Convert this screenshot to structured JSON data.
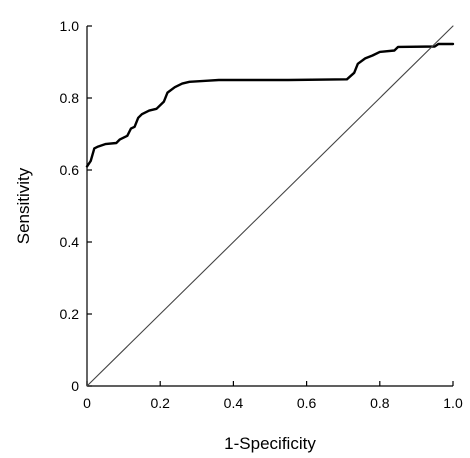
{
  "chart_data": {
    "type": "line",
    "title": "",
    "xlabel": "1-Specificity",
    "ylabel": "Sensitivity",
    "xlim": [
      0,
      1
    ],
    "ylim": [
      0,
      1
    ],
    "x_ticks": [
      {
        "value": 0,
        "label": "0"
      },
      {
        "value": 0.2,
        "label": "0.2"
      },
      {
        "value": 0.4,
        "label": "0.4"
      },
      {
        "value": 0.6,
        "label": "0.6"
      },
      {
        "value": 0.8,
        "label": "0.8"
      },
      {
        "value": 1,
        "label": "1.0"
      }
    ],
    "y_ticks": [
      {
        "value": 0,
        "label": "0"
      },
      {
        "value": 0.2,
        "label": "0.2"
      },
      {
        "value": 0.4,
        "label": "0.4"
      },
      {
        "value": 0.6,
        "label": "0.6"
      },
      {
        "value": 0.8,
        "label": "0.8"
      },
      {
        "value": 1,
        "label": "1.0"
      }
    ],
    "grid": false,
    "legend": "none",
    "series": [
      {
        "color": "#000000",
        "style": "thick",
        "points": [
          [
            0,
            0.61
          ],
          [
            0.01,
            0.625
          ],
          [
            0.02,
            0.66
          ],
          [
            0.03,
            0.665
          ],
          [
            0.05,
            0.672
          ],
          [
            0.08,
            0.675
          ],
          [
            0.09,
            0.685
          ],
          [
            0.11,
            0.695
          ],
          [
            0.12,
            0.715
          ],
          [
            0.13,
            0.72
          ],
          [
            0.14,
            0.745
          ],
          [
            0.15,
            0.755
          ],
          [
            0.17,
            0.765
          ],
          [
            0.19,
            0.77
          ],
          [
            0.21,
            0.79
          ],
          [
            0.22,
            0.815
          ],
          [
            0.24,
            0.83
          ],
          [
            0.26,
            0.84
          ],
          [
            0.28,
            0.845
          ],
          [
            0.33,
            0.848
          ],
          [
            0.36,
            0.85
          ],
          [
            0.45,
            0.85
          ],
          [
            0.55,
            0.85
          ],
          [
            0.71,
            0.852
          ],
          [
            0.73,
            0.87
          ],
          [
            0.74,
            0.895
          ],
          [
            0.76,
            0.91
          ],
          [
            0.78,
            0.918
          ],
          [
            0.8,
            0.928
          ],
          [
            0.84,
            0.932
          ],
          [
            0.85,
            0.942
          ],
          [
            0.95,
            0.943
          ],
          [
            0.96,
            0.95
          ],
          [
            1,
            0.95
          ]
        ]
      },
      {
        "color": "#444444",
        "style": "thin",
        "points": [
          [
            0,
            0
          ],
          [
            1,
            1
          ]
        ]
      }
    ]
  }
}
